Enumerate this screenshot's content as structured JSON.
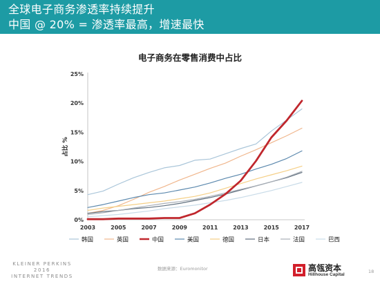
{
  "slide": {
    "title_line1": "全球电子商务渗透率持续提升",
    "title_line2": "中国 @ 20% = 渗透率最高，增速最快",
    "source": "数据来源：Euromonitor",
    "page_number": "18",
    "footer_brand": [
      "KLEINER PERKINS",
      "2016",
      "INTERNET TRENDS"
    ],
    "logo_cn": "高瓴资本",
    "logo_en": "Hillhouse Capital",
    "colors": {
      "banner": "#1d9ba4",
      "china": "#c0272d"
    }
  },
  "chart_data": {
    "type": "line",
    "title": "电子商务在零售消费中占比",
    "xlabel": "",
    "ylabel": "占比 %",
    "x": [
      2003,
      2004,
      2005,
      2006,
      2007,
      2008,
      2009,
      2010,
      2011,
      2012,
      2013,
      2014,
      2015,
      2016,
      2017
    ],
    "x_ticks": [
      "2003",
      "2005",
      "2007",
      "2009",
      "2011",
      "2013",
      "2015",
      "2017"
    ],
    "y_ticks": [
      "0%",
      "5%",
      "10%",
      "15%",
      "20%",
      "25%"
    ],
    "ylim": [
      0,
      25
    ],
    "grid": false,
    "legend_position": "bottom",
    "series": [
      {
        "name": "韩国",
        "color": "#a9c5d9",
        "width": 1.2,
        "values": [
          4.3,
          4.9,
          6.1,
          7.2,
          8.1,
          8.9,
          9.3,
          10.2,
          10.4,
          11.3,
          12.2,
          13.0,
          15.2,
          17.1,
          19.0
        ]
      },
      {
        "name": "英国",
        "color": "#f0b68c",
        "width": 1.2,
        "values": [
          1.1,
          1.6,
          2.4,
          3.5,
          4.7,
          5.7,
          6.8,
          7.8,
          8.8,
          9.7,
          10.9,
          12.0,
          13.2,
          14.4,
          15.7
        ]
      },
      {
        "name": "中国",
        "color": "#c0272d",
        "width": 2.8,
        "values": [
          0.1,
          0.1,
          0.2,
          0.2,
          0.2,
          0.3,
          0.3,
          1.1,
          2.6,
          4.4,
          6.7,
          10.1,
          14.1,
          17.0,
          20.4
        ]
      },
      {
        "name": "美国",
        "color": "#5b88ad",
        "width": 1.2,
        "values": [
          2.1,
          2.6,
          3.2,
          3.8,
          4.3,
          4.6,
          5.1,
          5.6,
          6.3,
          7.1,
          7.8,
          8.7,
          9.5,
          10.5,
          11.8
        ]
      },
      {
        "name": "德国",
        "color": "#f5cf86",
        "width": 1.2,
        "values": [
          1.6,
          2.0,
          2.3,
          2.6,
          2.9,
          3.2,
          3.6,
          4.0,
          4.6,
          5.4,
          6.2,
          7.0,
          7.7,
          8.4,
          9.2
        ]
      },
      {
        "name": "日本",
        "color": "#5f6f7e",
        "width": 1.2,
        "values": [
          1.1,
          1.4,
          1.6,
          1.9,
          2.1,
          2.4,
          2.8,
          3.3,
          3.8,
          4.4,
          5.1,
          5.8,
          6.5,
          7.2,
          8.1
        ]
      },
      {
        "name": "法国",
        "color": "#a8aeb6",
        "width": 1.2,
        "values": [
          0.9,
          1.2,
          1.6,
          2.0,
          2.4,
          2.8,
          3.1,
          3.5,
          4.0,
          4.6,
          5.2,
          5.8,
          6.5,
          7.3,
          8.3
        ]
      },
      {
        "name": "巴西",
        "color": "#c8dbe8",
        "width": 1.2,
        "values": [
          0.5,
          0.7,
          0.9,
          1.2,
          1.5,
          1.9,
          2.2,
          2.5,
          2.9,
          3.3,
          3.8,
          4.4,
          5.0,
          5.7,
          6.4
        ]
      }
    ]
  }
}
